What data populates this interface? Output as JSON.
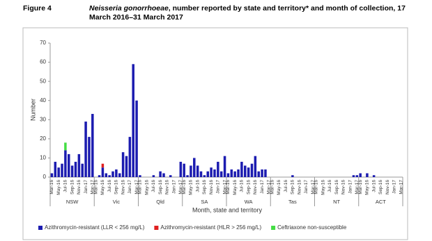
{
  "chart_data": {
    "type": "stacked-bar",
    "figure_label": "Figure 4",
    "title_italic": "Neisseria gonorrhoeae",
    "title": ", number reported by state and territory* and month of collection, 17 March 2016–31 March 2017",
    "ylabel": "Number",
    "xlabel": "Month, state and territory",
    "ylim": [
      0,
      70
    ],
    "yticks": [
      0,
      10,
      20,
      30,
      40,
      50,
      60,
      70
    ],
    "groups": [
      "NSW",
      "Vic",
      "Qld",
      "SA",
      "WA",
      "Tas",
      "NT",
      "ACT"
    ],
    "categories": [
      "Mar-16",
      null,
      "May-16",
      null,
      "Jul-16",
      null,
      "Sep-16",
      null,
      "Nov-16",
      null,
      "Jan-17",
      null,
      "Mar-17",
      "Mar-16",
      null,
      "May-16",
      null,
      "Jul-16",
      null,
      "Sep-16",
      null,
      "Nov-16",
      null,
      "Jan-17",
      null,
      "Mar-17",
      "Mar-16",
      null,
      "May-16",
      null,
      "Jul-16",
      null,
      "Sep-16",
      null,
      "Nov-16",
      null,
      "Jan-17",
      null,
      "Mar-17",
      "Mar-16",
      null,
      "May-16",
      null,
      "Jul-16",
      null,
      "Sep-16",
      null,
      "Nov-16",
      null,
      "Jan-17",
      null,
      "Mar-17",
      "Mar-16",
      null,
      "May-16",
      null,
      "Jul-16",
      null,
      "Sep-16",
      null,
      "Nov-16",
      null,
      "Jan-17",
      null,
      "Mar-17",
      "Mar-16",
      null,
      "May-16",
      null,
      "Jul-16",
      null,
      "Sep-16",
      null,
      "Nov-16",
      null,
      "Jan-17",
      null,
      "Mar-17",
      "Mar-16",
      null,
      "May-16",
      null,
      "Jul-16",
      null,
      "Sep-16",
      null,
      "Nov-16",
      null,
      "Jan-17",
      null,
      "Mar-17",
      "Mar-16",
      null,
      "May-16",
      null,
      "Jul-16",
      null,
      "Sep-16",
      null,
      "Nov-16",
      null,
      "Jan-17",
      null,
      "Mar-17"
    ],
    "series": [
      {
        "name": "Azithromycin-resistant (LLR < 256 mg/L)",
        "color": "#1c1cb0",
        "values": [
          2,
          8,
          5,
          7,
          14,
          12,
          6,
          8,
          12,
          7,
          29,
          21,
          33,
          0,
          1,
          5,
          2,
          1,
          3,
          4,
          2,
          13,
          11,
          21,
          59,
          40,
          1,
          0,
          0,
          0,
          1,
          0,
          3,
          2,
          0,
          1,
          0,
          0,
          8,
          7,
          1,
          6,
          10,
          6,
          3,
          1,
          3,
          5,
          4,
          8,
          3,
          11,
          2,
          4,
          3,
          4,
          8,
          6,
          5,
          7,
          11,
          3,
          4,
          4,
          0,
          0,
          0,
          0,
          0,
          0,
          0,
          1,
          0,
          0,
          0,
          0,
          0,
          0,
          0,
          0,
          0,
          0,
          0,
          0,
          0,
          0,
          0,
          0,
          0,
          1,
          1,
          2,
          0,
          2,
          0,
          1,
          0,
          0,
          0,
          0,
          0,
          0,
          0,
          0
        ]
      },
      {
        "name": "Azithromycin-resistant (HLR > 256 mg/L)",
        "color": "#e02020",
        "values": [
          0,
          0,
          0,
          0,
          0,
          0,
          0,
          0,
          0,
          0,
          0,
          0,
          0,
          0,
          0,
          2,
          0,
          0,
          0,
          0,
          0,
          0,
          0,
          0,
          0,
          0,
          0,
          0,
          0,
          0,
          0,
          0,
          0,
          0,
          0,
          0,
          0,
          0,
          0,
          0,
          0,
          0,
          0,
          0,
          0,
          0,
          0,
          0,
          0,
          0,
          0,
          0,
          0,
          0,
          0,
          0,
          0,
          0,
          0,
          0,
          0,
          0,
          0,
          0,
          0,
          0,
          0,
          0,
          0,
          0,
          0,
          0,
          0,
          0,
          0,
          0,
          0,
          0,
          0,
          0,
          0,
          0,
          0,
          0,
          0,
          0,
          0,
          0,
          0,
          0,
          0,
          0,
          0,
          0,
          0,
          0,
          0,
          0,
          0,
          0,
          0,
          0,
          0,
          0
        ]
      },
      {
        "name": "Ceftriaxone non-susceptible",
        "color": "#44dd44",
        "values": [
          0,
          0,
          0,
          0,
          4,
          0,
          0,
          0,
          0,
          0,
          0,
          0,
          0,
          0,
          0,
          0,
          0,
          0,
          0,
          0,
          0,
          0,
          0,
          0,
          0,
          0,
          0,
          0,
          0,
          0,
          0,
          0,
          0,
          0,
          0,
          0,
          0,
          0,
          0,
          0,
          0,
          0,
          0,
          0,
          0,
          0,
          0,
          0,
          0,
          0,
          0,
          0,
          0,
          0,
          0,
          0,
          0,
          0,
          0,
          0,
          0,
          0,
          0,
          0,
          0,
          0,
          0,
          0,
          0,
          0,
          0,
          0,
          0,
          0,
          0,
          0,
          0,
          0,
          0,
          0,
          0,
          0,
          0,
          0,
          0,
          0,
          0,
          0,
          0,
          0,
          0,
          0,
          0,
          0,
          0,
          0,
          0,
          0,
          0,
          0,
          0,
          0,
          0,
          0
        ]
      }
    ],
    "grid": false
  }
}
